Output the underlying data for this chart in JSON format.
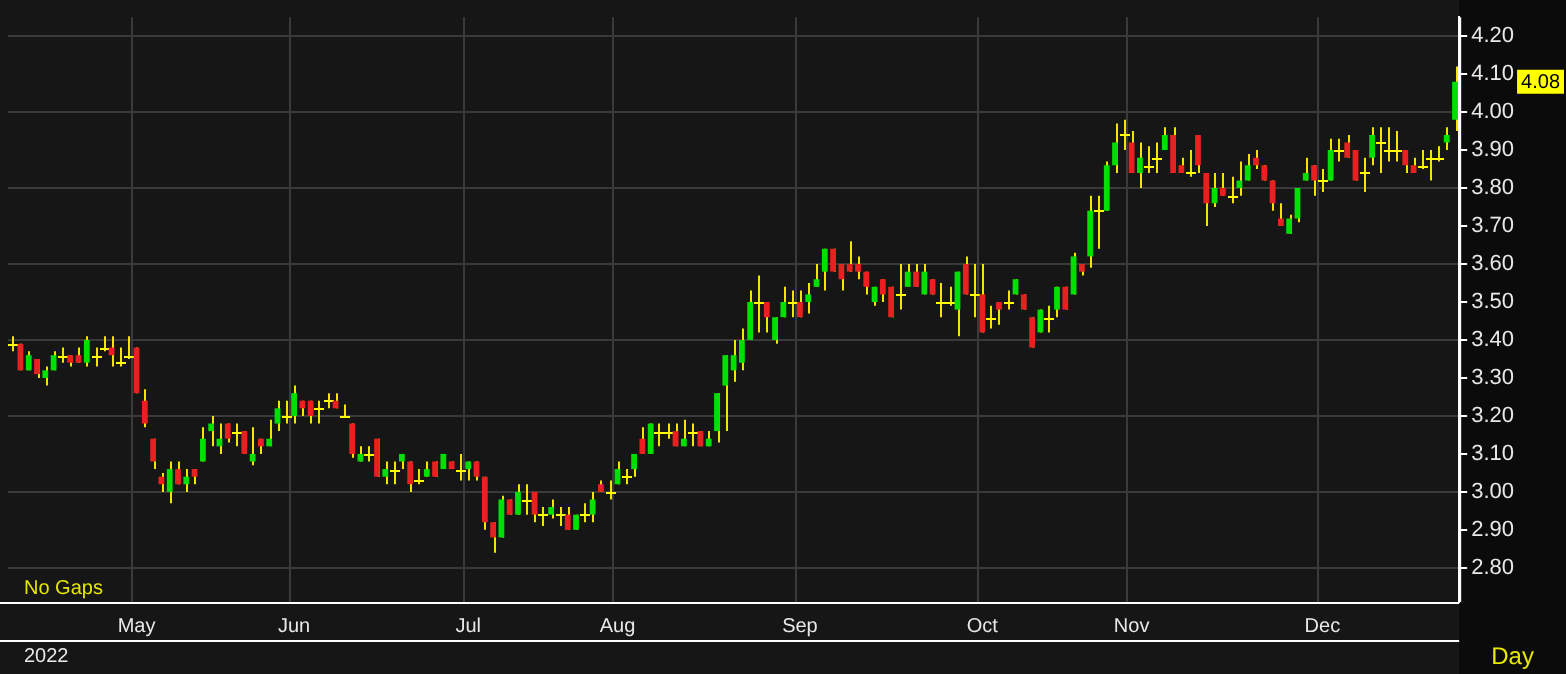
{
  "chart_data": {
    "type": "candlestick",
    "categories": [
      null,
      null,
      null,
      null,
      null,
      null,
      null,
      null,
      null,
      null,
      null,
      null,
      null,
      null,
      null,
      "May",
      null,
      null,
      null,
      null,
      null,
      null,
      null,
      null,
      null,
      null,
      null,
      null,
      null,
      null,
      null,
      null,
      null,
      null,
      "Jun",
      null,
      null,
      null,
      null,
      null,
      null,
      null,
      null,
      null,
      null,
      null,
      null,
      null,
      null,
      null,
      null,
      null,
      null,
      null,
      null,
      "Jul",
      null,
      null,
      null,
      null,
      null,
      null,
      null,
      null,
      null,
      null,
      null,
      null,
      null,
      null,
      null,
      null,
      null,
      "Aug",
      null,
      null,
      null,
      null,
      null,
      null,
      null,
      null,
      null,
      null,
      null,
      null,
      null,
      null,
      null,
      null,
      null,
      null,
      null,
      null,
      null,
      "Sep",
      null,
      null,
      null,
      null,
      null,
      null,
      null,
      null,
      null,
      null,
      null,
      null,
      null,
      null,
      null,
      null,
      null,
      null,
      null,
      null,
      null,
      "Oct",
      null,
      null,
      null,
      null,
      null,
      null,
      null,
      null,
      null,
      null,
      null,
      null,
      null,
      null,
      null,
      null,
      null,
      "Nov",
      null,
      null,
      null,
      null,
      null,
      null,
      null,
      null,
      null,
      null,
      null,
      null,
      null,
      null,
      null,
      null,
      null,
      null,
      null,
      null,
      null,
      null,
      "Dec",
      null,
      null,
      null,
      null,
      null,
      null,
      null,
      null,
      null,
      null,
      null,
      null,
      null,
      null,
      null,
      null
    ],
    "ohlc": [
      [
        3.39,
        3.41,
        3.37,
        3.39
      ],
      [
        3.39,
        3.39,
        3.32,
        3.32
      ],
      [
        3.32,
        3.37,
        3.32,
        3.36
      ],
      [
        3.35,
        3.35,
        3.3,
        3.31
      ],
      [
        3.3,
        3.33,
        3.28,
        3.32
      ],
      [
        3.32,
        3.37,
        3.32,
        3.36
      ],
      [
        3.36,
        3.38,
        3.34,
        3.36
      ],
      [
        3.36,
        3.36,
        3.33,
        3.34
      ],
      [
        3.36,
        3.38,
        3.34,
        3.34
      ],
      [
        3.34,
        3.41,
        3.33,
        3.4
      ],
      [
        3.36,
        3.38,
        3.33,
        3.36
      ],
      [
        3.38,
        3.41,
        3.37,
        3.38
      ],
      [
        3.38,
        3.41,
        3.33,
        3.36
      ],
      [
        3.34,
        3.38,
        3.33,
        3.34
      ],
      [
        3.36,
        3.41,
        3.35,
        3.36
      ],
      [
        3.38,
        3.38,
        3.26,
        3.26
      ],
      [
        3.24,
        3.27,
        3.17,
        3.18
      ],
      [
        3.14,
        3.14,
        3.06,
        3.08
      ],
      [
        3.04,
        3.05,
        3.0,
        3.02
      ],
      [
        3.0,
        3.08,
        2.97,
        3.06
      ],
      [
        3.06,
        3.08,
        3.02,
        3.02
      ],
      [
        3.02,
        3.06,
        3.0,
        3.04
      ],
      [
        3.06,
        3.06,
        3.02,
        3.04
      ],
      [
        3.08,
        3.17,
        3.08,
        3.14
      ],
      [
        3.16,
        3.2,
        3.12,
        3.18
      ],
      [
        3.12,
        3.18,
        3.1,
        3.14
      ],
      [
        3.18,
        3.18,
        3.13,
        3.14
      ],
      [
        3.16,
        3.18,
        3.12,
        3.16
      ],
      [
        3.16,
        3.16,
        3.1,
        3.1
      ],
      [
        3.08,
        3.17,
        3.07,
        3.1
      ],
      [
        3.14,
        3.14,
        3.1,
        3.12
      ],
      [
        3.12,
        3.19,
        3.12,
        3.14
      ],
      [
        3.18,
        3.24,
        3.16,
        3.22
      ],
      [
        3.2,
        3.24,
        3.18,
        3.2
      ],
      [
        3.2,
        3.28,
        3.18,
        3.26
      ],
      [
        3.24,
        3.24,
        3.2,
        3.22
      ],
      [
        3.24,
        3.24,
        3.18,
        3.2
      ],
      [
        3.22,
        3.24,
        3.18,
        3.22
      ],
      [
        3.24,
        3.26,
        3.22,
        3.24
      ],
      [
        3.24,
        3.26,
        3.22,
        3.22
      ],
      [
        3.2,
        3.23,
        3.2,
        3.2
      ],
      [
        3.18,
        3.18,
        3.09,
        3.1
      ],
      [
        3.08,
        3.12,
        3.08,
        3.1
      ],
      [
        3.1,
        3.12,
        3.08,
        3.1
      ],
      [
        3.14,
        3.14,
        3.04,
        3.04
      ],
      [
        3.04,
        3.08,
        3.02,
        3.06
      ],
      [
        3.06,
        3.08,
        3.02,
        3.06
      ],
      [
        3.08,
        3.1,
        3.06,
        3.1
      ],
      [
        3.08,
        3.08,
        3.0,
        3.02
      ],
      [
        3.03,
        3.06,
        3.02,
        3.03
      ],
      [
        3.04,
        3.08,
        3.04,
        3.06
      ],
      [
        3.08,
        3.08,
        3.04,
        3.04
      ],
      [
        3.06,
        3.1,
        3.06,
        3.1
      ],
      [
        3.08,
        3.08,
        3.06,
        3.06
      ],
      [
        3.06,
        3.1,
        3.03,
        3.06
      ],
      [
        3.06,
        3.08,
        3.03,
        3.08
      ],
      [
        3.08,
        3.08,
        3.03,
        3.04
      ],
      [
        3.04,
        3.04,
        2.9,
        2.92
      ],
      [
        2.92,
        2.92,
        2.84,
        2.88
      ],
      [
        2.88,
        2.99,
        2.88,
        2.98
      ],
      [
        2.98,
        2.98,
        2.94,
        2.94
      ],
      [
        2.94,
        3.02,
        2.94,
        3.0
      ],
      [
        2.98,
        3.02,
        2.94,
        2.98
      ],
      [
        3.0,
        3.0,
        2.92,
        2.94
      ],
      [
        2.94,
        2.96,
        2.91,
        2.94
      ],
      [
        2.94,
        2.98,
        2.93,
        2.96
      ],
      [
        2.94,
        2.96,
        2.91,
        2.94
      ],
      [
        2.94,
        2.96,
        2.9,
        2.9
      ],
      [
        2.9,
        2.94,
        2.9,
        2.94
      ],
      [
        2.94,
        2.97,
        2.92,
        2.94
      ],
      [
        2.94,
        3.0,
        2.92,
        2.98
      ],
      [
        3.02,
        3.03,
        3.0,
        3.0
      ],
      [
        3.0,
        3.03,
        2.98,
        3.0
      ],
      [
        3.02,
        3.08,
        3.02,
        3.06
      ],
      [
        3.04,
        3.06,
        3.02,
        3.04
      ],
      [
        3.06,
        3.1,
        3.04,
        3.1
      ],
      [
        3.14,
        3.17,
        3.1,
        3.1
      ],
      [
        3.1,
        3.18,
        3.1,
        3.18
      ],
      [
        3.16,
        3.18,
        3.12,
        3.16
      ],
      [
        3.16,
        3.18,
        3.14,
        3.16
      ],
      [
        3.16,
        3.18,
        3.12,
        3.12
      ],
      [
        3.12,
        3.19,
        3.12,
        3.14
      ],
      [
        3.16,
        3.18,
        3.12,
        3.16
      ],
      [
        3.16,
        3.16,
        3.12,
        3.12
      ],
      [
        3.12,
        3.16,
        3.12,
        3.14
      ],
      [
        3.16,
        3.26,
        3.13,
        3.26
      ],
      [
        3.28,
        3.36,
        3.16,
        3.36
      ],
      [
        3.32,
        3.4,
        3.29,
        3.36
      ],
      [
        3.34,
        3.43,
        3.32,
        3.4
      ],
      [
        3.4,
        3.53,
        3.4,
        3.5
      ],
      [
        3.5,
        3.57,
        3.42,
        3.5
      ],
      [
        3.5,
        3.5,
        3.42,
        3.46
      ],
      [
        3.4,
        3.46,
        3.39,
        3.46
      ],
      [
        3.46,
        3.54,
        3.46,
        3.5
      ],
      [
        3.5,
        3.53,
        3.46,
        3.5
      ],
      [
        3.5,
        3.53,
        3.46,
        3.46
      ],
      [
        3.5,
        3.55,
        3.47,
        3.52
      ],
      [
        3.54,
        3.6,
        3.54,
        3.56
      ],
      [
        3.58,
        3.64,
        3.53,
        3.64
      ],
      [
        3.64,
        3.64,
        3.58,
        3.58
      ],
      [
        3.6,
        3.6,
        3.53,
        3.56
      ],
      [
        3.6,
        3.66,
        3.58,
        3.58
      ],
      [
        3.6,
        3.62,
        3.56,
        3.58
      ],
      [
        3.58,
        3.58,
        3.52,
        3.54
      ],
      [
        3.5,
        3.54,
        3.49,
        3.54
      ],
      [
        3.56,
        3.56,
        3.5,
        3.52
      ],
      [
        3.54,
        3.54,
        3.46,
        3.46
      ],
      [
        3.52,
        3.6,
        3.48,
        3.52
      ],
      [
        3.54,
        3.6,
        3.54,
        3.58
      ],
      [
        3.58,
        3.6,
        3.54,
        3.54
      ],
      [
        3.52,
        3.6,
        3.52,
        3.58
      ],
      [
        3.56,
        3.56,
        3.52,
        3.52
      ],
      [
        3.5,
        3.55,
        3.46,
        3.5
      ],
      [
        3.5,
        3.54,
        3.49,
        3.5
      ],
      [
        3.48,
        3.58,
        3.41,
        3.58
      ],
      [
        3.6,
        3.62,
        3.52,
        3.52
      ],
      [
        3.52,
        3.6,
        3.46,
        3.52
      ],
      [
        3.52,
        3.6,
        3.42,
        3.42
      ],
      [
        3.46,
        3.49,
        3.43,
        3.46
      ],
      [
        3.5,
        3.5,
        3.44,
        3.48
      ],
      [
        3.5,
        3.53,
        3.48,
        3.5
      ],
      [
        3.52,
        3.56,
        3.52,
        3.56
      ],
      [
        3.52,
        3.52,
        3.48,
        3.48
      ],
      [
        3.46,
        3.46,
        3.38,
        3.38
      ],
      [
        3.42,
        3.48,
        3.42,
        3.48
      ],
      [
        3.46,
        3.49,
        3.42,
        3.46
      ],
      [
        3.48,
        3.54,
        3.46,
        3.54
      ],
      [
        3.54,
        3.54,
        3.48,
        3.48
      ],
      [
        3.52,
        3.63,
        3.52,
        3.62
      ],
      [
        3.6,
        3.6,
        3.57,
        3.58
      ],
      [
        3.62,
        3.78,
        3.59,
        3.74
      ],
      [
        3.74,
        3.78,
        3.64,
        3.74
      ],
      [
        3.74,
        3.87,
        3.74,
        3.86
      ],
      [
        3.86,
        3.97,
        3.84,
        3.92
      ],
      [
        3.94,
        3.98,
        3.9,
        3.94
      ],
      [
        3.92,
        3.95,
        3.84,
        3.84
      ],
      [
        3.84,
        3.92,
        3.8,
        3.88
      ],
      [
        3.86,
        3.91,
        3.84,
        3.86
      ],
      [
        3.88,
        3.92,
        3.84,
        3.88
      ],
      [
        3.9,
        3.96,
        3.9,
        3.94
      ],
      [
        3.94,
        3.96,
        3.84,
        3.84
      ],
      [
        3.86,
        3.88,
        3.84,
        3.84
      ],
      [
        3.84,
        3.9,
        3.83,
        3.84
      ],
      [
        3.94,
        3.94,
        3.84,
        3.86
      ],
      [
        3.84,
        3.84,
        3.7,
        3.76
      ],
      [
        3.76,
        3.84,
        3.75,
        3.8
      ],
      [
        3.8,
        3.84,
        3.78,
        3.78
      ],
      [
        3.78,
        3.83,
        3.76,
        3.78
      ],
      [
        3.8,
        3.87,
        3.78,
        3.82
      ],
      [
        3.82,
        3.89,
        3.82,
        3.86
      ],
      [
        3.88,
        3.9,
        3.85,
        3.86
      ],
      [
        3.86,
        3.86,
        3.82,
        3.82
      ],
      [
        3.82,
        3.82,
        3.74,
        3.76
      ],
      [
        3.72,
        3.76,
        3.7,
        3.7
      ],
      [
        3.68,
        3.73,
        3.68,
        3.72
      ],
      [
        3.72,
        3.8,
        3.71,
        3.8
      ],
      [
        3.82,
        3.88,
        3.82,
        3.84
      ],
      [
        3.86,
        3.86,
        3.78,
        3.82
      ],
      [
        3.82,
        3.85,
        3.79,
        3.82
      ],
      [
        3.82,
        3.93,
        3.82,
        3.9
      ],
      [
        3.9,
        3.93,
        3.87,
        3.9
      ],
      [
        3.92,
        3.94,
        3.88,
        3.88
      ],
      [
        3.9,
        3.9,
        3.82,
        3.82
      ],
      [
        3.84,
        3.88,
        3.79,
        3.84
      ],
      [
        3.88,
        3.96,
        3.86,
        3.94
      ],
      [
        3.92,
        3.96,
        3.84,
        3.92
      ],
      [
        3.9,
        3.96,
        3.87,
        3.9
      ],
      [
        3.9,
        3.95,
        3.87,
        3.9
      ],
      [
        3.9,
        3.9,
        3.84,
        3.86
      ],
      [
        3.86,
        3.88,
        3.84,
        3.84
      ],
      [
        3.86,
        3.9,
        3.85,
        3.86
      ],
      [
        3.88,
        3.9,
        3.82,
        3.88
      ],
      [
        3.88,
        3.91,
        3.87,
        3.88
      ],
      [
        3.92,
        3.96,
        3.9,
        3.94
      ],
      [
        3.98,
        4.12,
        3.95,
        4.08
      ]
    ],
    "colors": [
      "#ffff00",
      "#e82020",
      "#00e000",
      "#e82020",
      "#00e000",
      "#00e000",
      "#ffff00",
      "#e82020",
      "#e82020",
      "#00e000",
      "#ffff00",
      "#ffff00",
      "#e82020",
      "#ffff00",
      "#ffff00",
      "#e82020",
      "#e82020",
      "#e82020",
      "#e82020",
      "#00e000",
      "#e82020",
      "#00e000",
      "#e82020",
      "#00e000",
      "#00e000",
      "#00e000",
      "#e82020",
      "#ffff00",
      "#e82020",
      "#00e000",
      "#e82020",
      "#00e000",
      "#00e000",
      "#ffff00",
      "#00e000",
      "#e82020",
      "#e82020",
      "#ffff00",
      "#ffff00",
      "#e82020",
      "#ffff00",
      "#e82020",
      "#00e000",
      "#ffff00",
      "#e82020",
      "#00e000",
      "#ffff00",
      "#00e000",
      "#e82020",
      "#ffff00",
      "#00e000",
      "#e82020",
      "#00e000",
      "#e82020",
      "#ffff00",
      "#00e000",
      "#e82020",
      "#e82020",
      "#e82020",
      "#00e000",
      "#e82020",
      "#00e000",
      "#ffff00",
      "#e82020",
      "#ffff00",
      "#00e000",
      "#ffff00",
      "#e82020",
      "#00e000",
      "#ffff00",
      "#00e000",
      "#e82020",
      "#ffff00",
      "#00e000",
      "#ffff00",
      "#00e000",
      "#e82020",
      "#00e000",
      "#ffff00",
      "#ffff00",
      "#e82020",
      "#00e000",
      "#ffff00",
      "#e82020",
      "#00e000",
      "#00e000",
      "#00e000",
      "#00e000",
      "#00e000",
      "#00e000",
      "#ffff00",
      "#e82020",
      "#00e000",
      "#00e000",
      "#ffff00",
      "#e82020",
      "#00e000",
      "#00e000",
      "#00e000",
      "#e82020",
      "#e82020",
      "#e82020",
      "#e82020",
      "#e82020",
      "#00e000",
      "#e82020",
      "#e82020",
      "#ffff00",
      "#00e000",
      "#e82020",
      "#00e000",
      "#e82020",
      "#ffff00",
      "#ffff00",
      "#00e000",
      "#e82020",
      "#ffff00",
      "#e82020",
      "#ffff00",
      "#e82020",
      "#ffff00",
      "#00e000",
      "#e82020",
      "#e82020",
      "#00e000",
      "#ffff00",
      "#00e000",
      "#e82020",
      "#00e000",
      "#e82020",
      "#00e000",
      "#ffff00",
      "#00e000",
      "#00e000",
      "#ffff00",
      "#e82020",
      "#00e000",
      "#ffff00",
      "#ffff00",
      "#00e000",
      "#e82020",
      "#e82020",
      "#ffff00",
      "#e82020",
      "#e82020",
      "#00e000",
      "#e82020",
      "#ffff00",
      "#00e000",
      "#00e000",
      "#e82020",
      "#e82020",
      "#e82020",
      "#e82020",
      "#00e000",
      "#00e000",
      "#00e000",
      "#e82020",
      "#ffff00",
      "#00e000",
      "#ffff00",
      "#e82020",
      "#e82020",
      "#ffff00",
      "#00e000",
      "#ffff00",
      "#ffff00",
      "#ffff00",
      "#e82020",
      "#e82020",
      "#ffff00",
      "#ffff00",
      "#ffff00",
      "#00e000",
      "#00e000"
    ],
    "ylim": [
      2.71,
      4.25
    ],
    "yticks": [
      {
        "value": 2.8,
        "label": "2.80"
      },
      {
        "value": 2.9,
        "label": "2.90"
      },
      {
        "value": 3.0,
        "label": "3.00"
      },
      {
        "value": 3.1,
        "label": "3.10"
      },
      {
        "value": 3.2,
        "label": "3.20"
      },
      {
        "value": 3.3,
        "label": "3.30"
      },
      {
        "value": 3.4,
        "label": "3.40"
      },
      {
        "value": 3.5,
        "label": "3.50"
      },
      {
        "value": 3.6,
        "label": "3.60"
      },
      {
        "value": 3.7,
        "label": "3.70"
      },
      {
        "value": 3.8,
        "label": "3.80"
      },
      {
        "value": 3.9,
        "label": "3.90"
      },
      {
        "value": 4.0,
        "label": "4.00"
      },
      {
        "value": 4.1,
        "label": "4.10"
      },
      {
        "value": 4.2,
        "label": "4.20"
      }
    ],
    "grid": true,
    "legend": false,
    "annotations": [
      "No Gaps",
      "2022",
      "Day",
      "4.08"
    ]
  }
}
